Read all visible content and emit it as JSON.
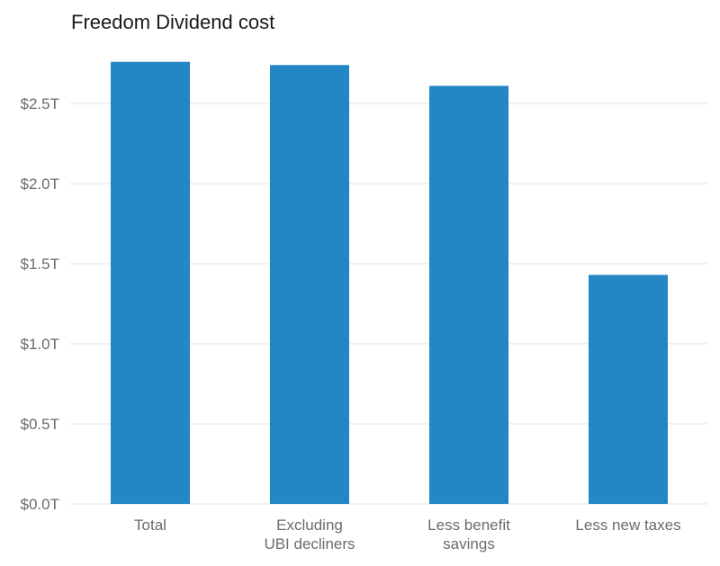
{
  "chart_data": {
    "type": "bar",
    "title": "Freedom Dividend cost",
    "xlabel": "",
    "ylabel": "",
    "categories": [
      [
        "Total"
      ],
      [
        "Excluding",
        "UBI decliners"
      ],
      [
        "Less benefit",
        "savings"
      ],
      [
        "Less new taxes"
      ]
    ],
    "values": [
      2.76,
      2.74,
      2.61,
      1.43
    ],
    "value_unit": "trillion USD",
    "y_ticks": [
      0.0,
      0.5,
      1.0,
      1.5,
      2.0,
      2.5
    ],
    "y_tick_labels": [
      "$0.0T",
      "$0.5T",
      "$1.0T",
      "$1.5T",
      "$2.0T",
      "$2.5T"
    ],
    "ylim": [
      0,
      2.8
    ],
    "grid": true,
    "legend": "none",
    "colors": {
      "bar": "#2386c5",
      "grid": "#ebebeb",
      "tick_text": "#6b6b6b",
      "title_text": "#1a1a1a"
    }
  }
}
